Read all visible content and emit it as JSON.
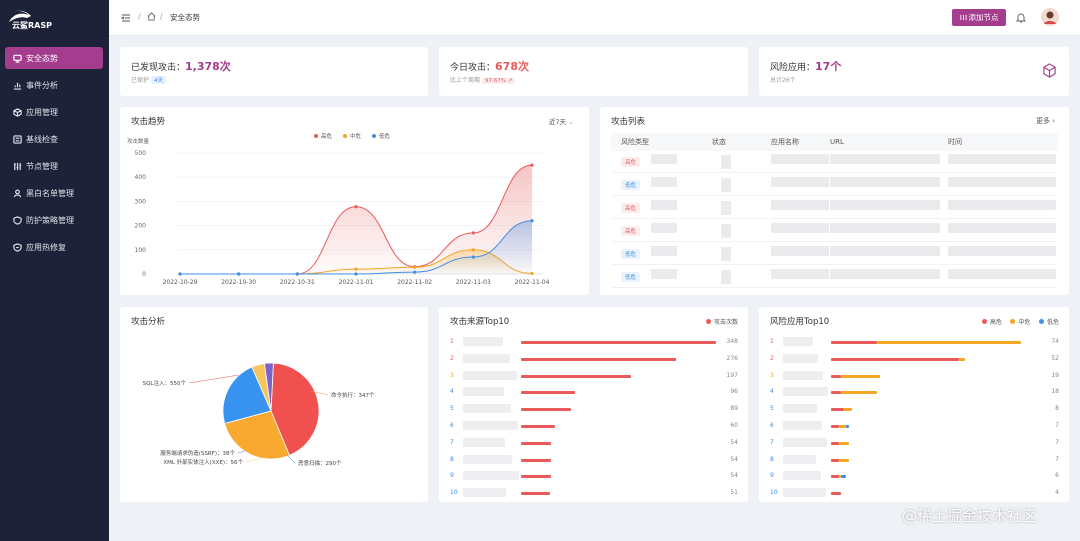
{
  "app": {
    "logo_text": "云鲨RASP",
    "accent": "#a43d8e"
  },
  "sidebar": {
    "items": [
      {
        "label": "安全态势",
        "icon": "monitor-icon",
        "active": true
      },
      {
        "label": "事件分析",
        "icon": "chart-icon"
      },
      {
        "label": "应用管理",
        "icon": "cube-icon"
      },
      {
        "label": "基线检查",
        "icon": "list-icon"
      },
      {
        "label": "节点管理",
        "icon": "sliders-icon"
      },
      {
        "label": "黑白名单管理",
        "icon": "user-icon"
      },
      {
        "label": "防护策略管理",
        "icon": "shield-icon"
      },
      {
        "label": "应用热修复",
        "icon": "shield-fix-icon"
      }
    ]
  },
  "header": {
    "breadcrumb": {
      "sep": "/",
      "current": "安全态势"
    },
    "add_node_label": "添加节点"
  },
  "stats": {
    "attacks_found": {
      "label": "已发现攻击：",
      "value": "1,378次",
      "sub_label": "已保护",
      "sub_badge": "4天"
    },
    "today": {
      "label": "今日攻击：",
      "value": "678次",
      "sub_label": "比上个周期",
      "sub_badge": "97.67% ↗"
    },
    "risk_apps": {
      "label": "风险应用：",
      "value": "17个",
      "sub_label": "总计26个"
    }
  },
  "trend": {
    "title": "攻击趋势",
    "range_label": "近7天",
    "chart_data": {
      "type": "line",
      "title": "攻击趋势",
      "ylabel": "攻击数量",
      "x": [
        "2022-10-29",
        "2022-10-30",
        "2022-10-31",
        "2022-11-01",
        "2022-11-02",
        "2022-11-03",
        "2022-11-04"
      ],
      "ylim": [
        0,
        500
      ],
      "yticks": [
        0,
        100,
        200,
        300,
        400,
        500
      ],
      "legend": "top",
      "series": [
        {
          "name": "高危",
          "color": "#e85a5a",
          "values": [
            0,
            0,
            0,
            278,
            30,
            170,
            450
          ]
        },
        {
          "name": "中危",
          "color": "#f5a623",
          "values": [
            0,
            0,
            0,
            20,
            28,
            100,
            2
          ]
        },
        {
          "name": "低危",
          "color": "#3f8fe6",
          "values": [
            0,
            0,
            0,
            0,
            8,
            70,
            220
          ]
        }
      ]
    }
  },
  "attack_list": {
    "title": "攻击列表",
    "more_label": "更多 ›",
    "columns": [
      "风险类型",
      "状态",
      "应用名称",
      "URL",
      "时间"
    ],
    "rows": [
      {
        "level": "高危"
      },
      {
        "level": "低危"
      },
      {
        "level": "高危"
      },
      {
        "level": "高危"
      },
      {
        "level": "低危"
      },
      {
        "level": "低危"
      }
    ]
  },
  "analysis": {
    "title": "攻击分析",
    "chart_data": {
      "type": "pie",
      "title": "攻击分析",
      "slices": [
        {
          "label": "SQL注入：550个",
          "value": 550,
          "color": "#f0514f"
        },
        {
          "label": "命令执行：347个",
          "value": 347,
          "color": "#f9a830"
        },
        {
          "label": "恶意扫描：290个",
          "value": 290,
          "color": "#3792f0"
        },
        {
          "label": "XML 外部实体注入(XXE)：56个",
          "value": 56,
          "color": "#f7c55e"
        },
        {
          "label": "服务端请求伪造(SSRF)：38个",
          "value": 38,
          "color": "#7a63c9"
        }
      ]
    }
  },
  "sources": {
    "title": "攻击来源Top10",
    "legend": "攻击次数",
    "chart_data": {
      "type": "bar",
      "title": "攻击来源Top10",
      "categories": [
        "1",
        "2",
        "3",
        "4",
        "5",
        "6",
        "7",
        "8",
        "9",
        "10"
      ],
      "series": [
        {
          "name": "攻击次数",
          "color": "#e85a5a",
          "values": [
            348,
            276,
            197,
            96,
            89,
            60,
            54,
            54,
            54,
            51
          ]
        }
      ],
      "xlim": [
        0,
        348
      ]
    }
  },
  "risk_apps": {
    "title": "风险应用Top10",
    "chart_data": {
      "type": "bar",
      "title": "风险应用Top10",
      "categories": [
        "1",
        "2",
        "3",
        "4",
        "5",
        "6",
        "7",
        "8",
        "9",
        "10"
      ],
      "totals": [
        74,
        52,
        19,
        18,
        8,
        7,
        7,
        7,
        6,
        4
      ],
      "series": [
        {
          "name": "高危",
          "color": "#e85a5a",
          "values": [
            18,
            50,
            4,
            4,
            5,
            3,
            3,
            3,
            3,
            4
          ]
        },
        {
          "name": "中危",
          "color": "#f5a623",
          "values": [
            56,
            2,
            15,
            14,
            3,
            3,
            4,
            4,
            1,
            0
          ]
        },
        {
          "name": "低危",
          "color": "#3f8fe6",
          "values": [
            0,
            0,
            0,
            0,
            0,
            1,
            0,
            0,
            2,
            0
          ]
        }
      ],
      "xlim": [
        0,
        74
      ]
    }
  },
  "watermark": "@稀土掘金技术社区"
}
